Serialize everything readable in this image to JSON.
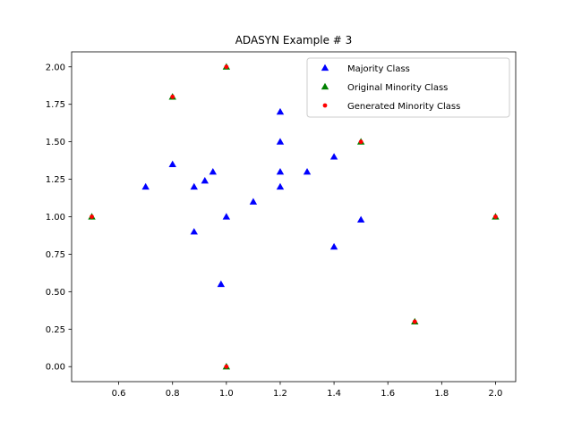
{
  "chart_data": {
    "type": "scatter",
    "title": "ADASYN Example # 3",
    "xlabel": "",
    "ylabel": "",
    "xlim": [
      0.425,
      2.075
    ],
    "ylim": [
      -0.1,
      2.1
    ],
    "xticks": [
      0.6,
      0.8,
      1.0,
      1.2,
      1.4,
      1.6,
      1.8,
      2.0
    ],
    "xtick_labels": [
      "0.6",
      "0.8",
      "1.0",
      "1.2",
      "1.4",
      "1.6",
      "1.8",
      "2.0"
    ],
    "yticks": [
      0.0,
      0.25,
      0.5,
      0.75,
      1.0,
      1.25,
      1.5,
      1.75,
      2.0
    ],
    "ytick_labels": [
      "0.00",
      "0.25",
      "0.50",
      "0.75",
      "1.00",
      "1.25",
      "1.50",
      "1.75",
      "2.00"
    ],
    "grid": false,
    "legend_position": "top-right",
    "series": [
      {
        "name": "Majority Class",
        "marker": "triangle",
        "color": "#0000ff",
        "points": [
          [
            0.7,
            1.2
          ],
          [
            0.8,
            1.35
          ],
          [
            0.88,
            1.2
          ],
          [
            0.88,
            0.9
          ],
          [
            0.92,
            1.24
          ],
          [
            0.95,
            1.3
          ],
          [
            0.98,
            0.55
          ],
          [
            1.0,
            1.0
          ],
          [
            1.1,
            1.1
          ],
          [
            1.2,
            1.7
          ],
          [
            1.2,
            1.5
          ],
          [
            1.2,
            1.3
          ],
          [
            1.2,
            1.2
          ],
          [
            1.3,
            1.3
          ],
          [
            1.4,
            1.4
          ],
          [
            1.4,
            0.8
          ],
          [
            1.5,
            0.98
          ]
        ]
      },
      {
        "name": "Original Minority Class",
        "marker": "triangle",
        "color": "#008000",
        "points": [
          [
            0.5,
            1.0
          ],
          [
            0.8,
            1.8
          ],
          [
            1.0,
            2.0
          ],
          [
            1.0,
            0.0
          ],
          [
            1.5,
            1.5
          ],
          [
            1.7,
            0.3
          ],
          [
            2.0,
            1.0
          ]
        ]
      },
      {
        "name": "Generated Minority Class",
        "marker": "dot",
        "color": "#ff0000",
        "points": [
          [
            0.5,
            1.0
          ],
          [
            0.8,
            1.8
          ],
          [
            1.0,
            2.0
          ],
          [
            1.0,
            0.0
          ],
          [
            1.5,
            1.5
          ],
          [
            1.7,
            0.3
          ],
          [
            2.0,
            1.0
          ]
        ]
      }
    ]
  }
}
